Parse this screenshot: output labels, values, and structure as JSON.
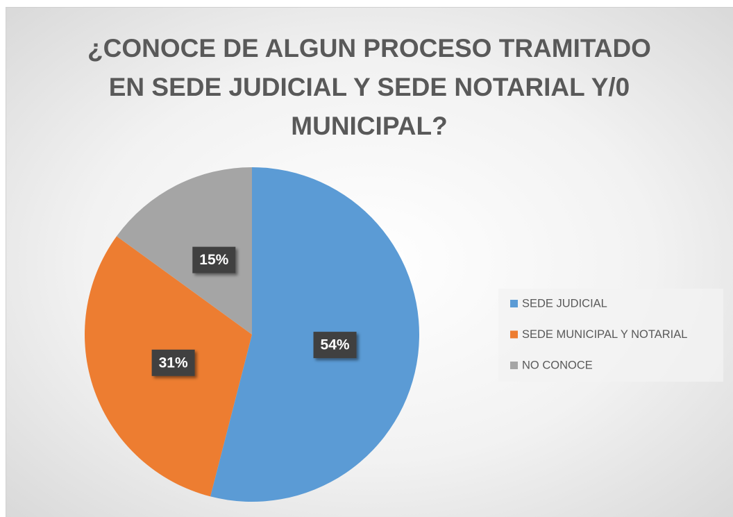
{
  "chart_data": {
    "type": "pie",
    "title": "¿CONOCE DE ALGUN PROCESO TRAMITADO EN SEDE JUDICIAL Y SEDE NOTARIAL Y/0 MUNICIPAL?",
    "categories": [
      "SEDE JUDICIAL",
      "SEDE MUNICIPAL Y NOTARIAL",
      "NO CONOCE"
    ],
    "values": [
      54,
      31,
      15
    ],
    "value_labels": [
      "54%",
      "31%",
      "15%"
    ],
    "colors": [
      "#5b9bd5",
      "#ed7d31",
      "#a5a5a5"
    ],
    "legend": "right"
  }
}
